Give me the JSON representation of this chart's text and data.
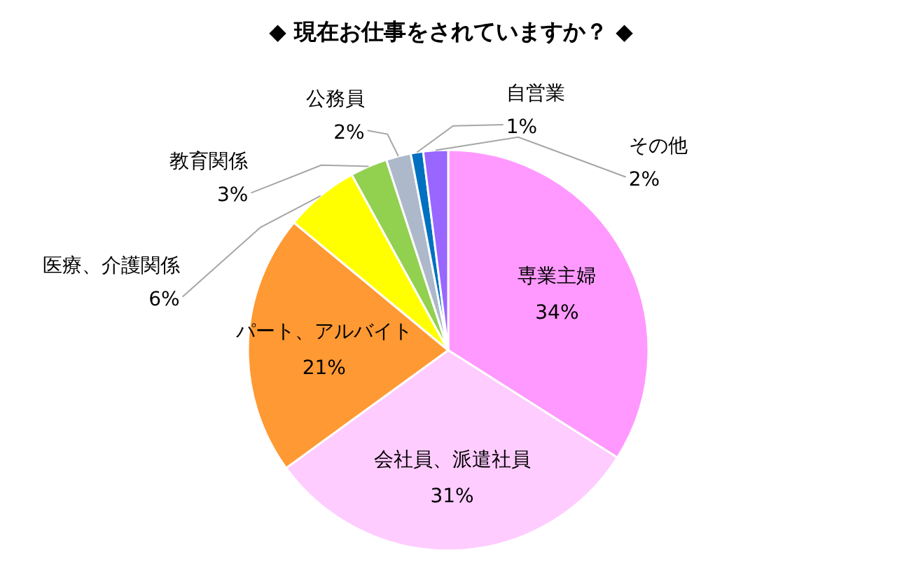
{
  "chart_data": {
    "type": "pie",
    "title": "◆ 現在お仕事をされていますか？ ◆",
    "categories": [
      "専業主婦",
      "会社員、派遣社員",
      "パート、アルバイト",
      "医療、介護関係",
      "教育関係",
      "公務員",
      "自営業",
      "その他"
    ],
    "values": [
      34,
      31,
      21,
      6,
      3,
      2,
      1,
      2
    ],
    "colors": [
      "#ff99ff",
      "#ffccff",
      "#ff9933",
      "#ffff00",
      "#92d050",
      "#adb9ca",
      "#0070c0",
      "#9966ff"
    ],
    "value_labels": [
      "34%",
      "31%",
      "21%",
      "6%",
      "3%",
      "2%",
      "1%",
      "2%"
    ]
  }
}
